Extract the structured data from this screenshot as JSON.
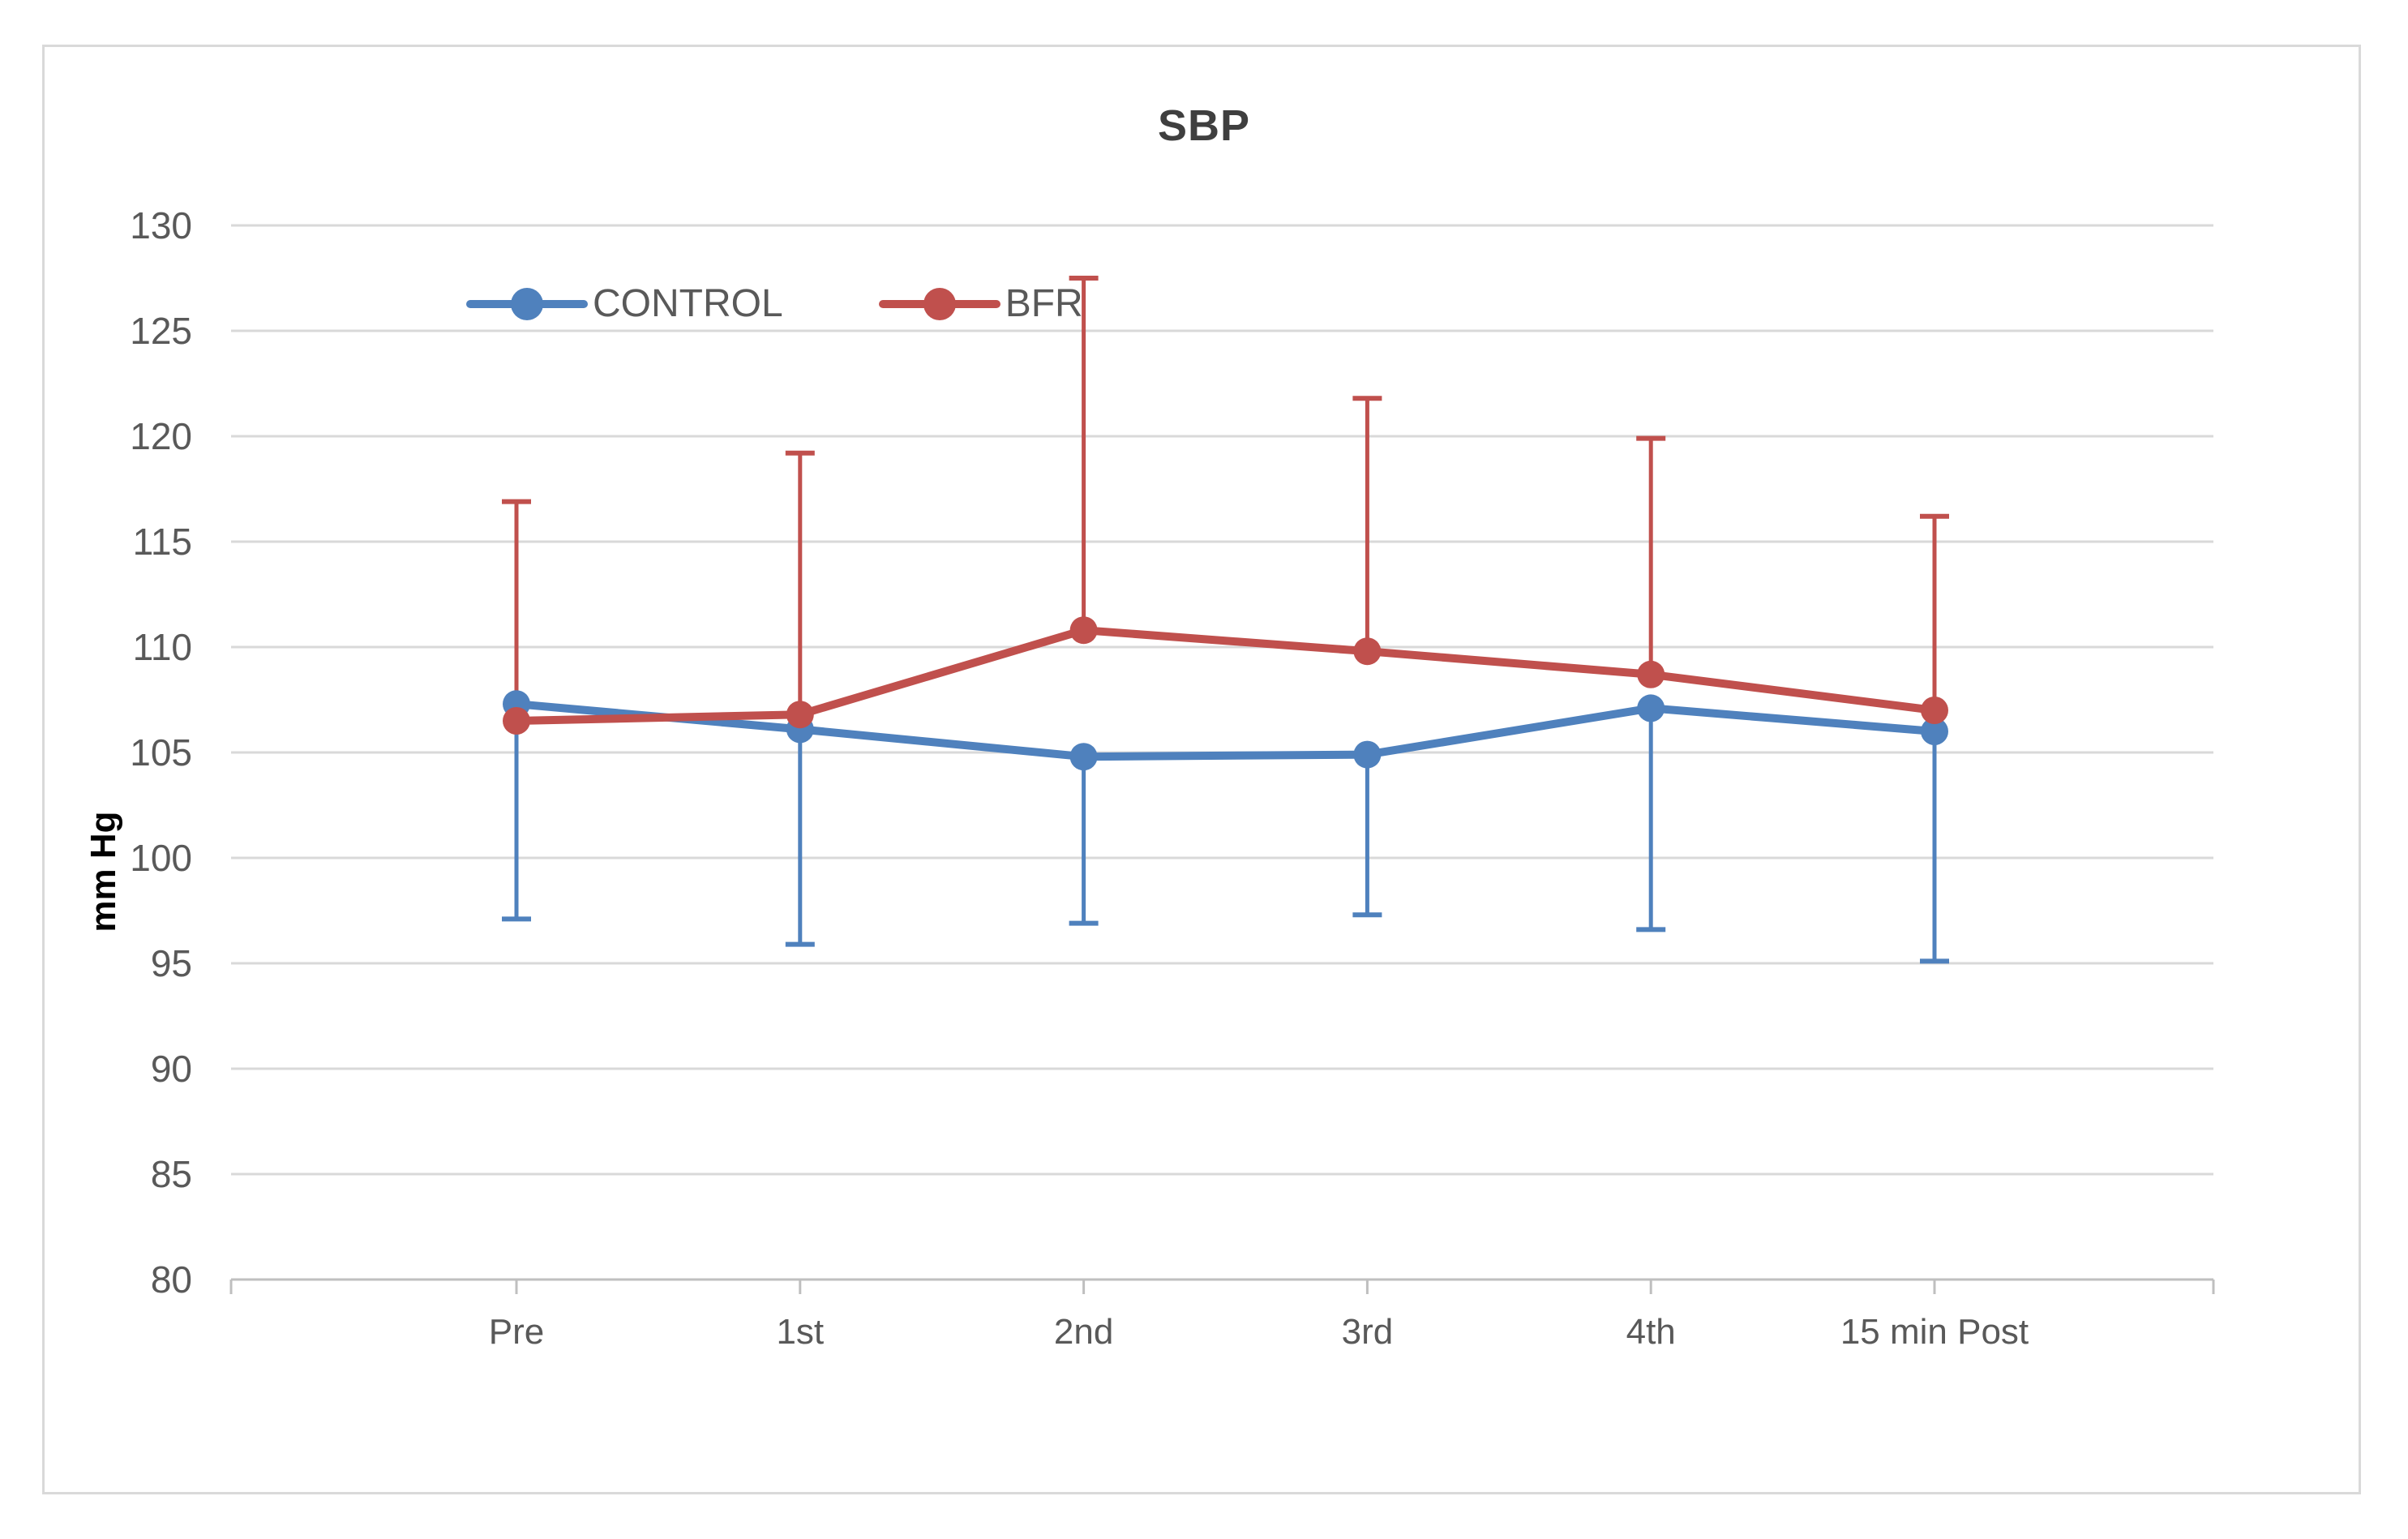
{
  "chart_title": "SBP",
  "colors": {
    "control": "#4f81bd",
    "bfr": "#c0504d",
    "gridline": "#d9d9d9",
    "axis": "#bfbfbf",
    "text_muted": "#595959",
    "title_text": "#3f3f3f",
    "frame_border": "#d9d9d9",
    "background": "#ffffff"
  },
  "chart_data": {
    "type": "line",
    "title": "SBP",
    "xlabel": "",
    "ylabel": "mm Hg",
    "categories": [
      "Pre",
      "1st",
      "2nd",
      "3rd",
      "4th",
      "15 min Post"
    ],
    "ylim": [
      80,
      130
    ],
    "ytick_step": 5,
    "grid": true,
    "legend_position": "top-left-inside",
    "marker_style": "circle",
    "series": [
      {
        "name": "CONTROL",
        "color": "#4f81bd",
        "values": [
          107.3,
          106.1,
          104.8,
          104.9,
          107.1,
          106.0
        ],
        "error_bar_direction": "minus",
        "error_bar_ends": [
          97.1,
          95.9,
          96.9,
          97.3,
          96.6,
          95.1
        ]
      },
      {
        "name": "BFR",
        "color": "#c0504d",
        "values": [
          106.5,
          106.8,
          110.8,
          109.8,
          108.7,
          107.0
        ],
        "error_bar_direction": "plus",
        "error_bar_ends": [
          116.9,
          119.2,
          127.5,
          121.8,
          119.9,
          116.2
        ]
      }
    ]
  }
}
